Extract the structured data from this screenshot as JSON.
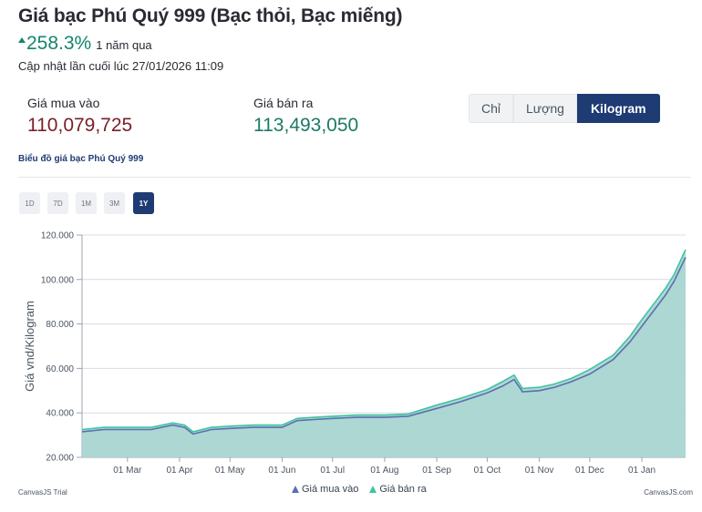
{
  "header": {
    "title": "Giá bạc Phú Quý 999 (Bạc thỏi, Bạc miếng)",
    "change_pct": "258.3%",
    "change_period": "1 năm qua",
    "updated": "Cập nhật lần cuối lúc 27/01/2026 11:09"
  },
  "prices": {
    "buy_label": "Giá mua vào",
    "buy_value": "110,079,725",
    "sell_label": "Giá bán ra",
    "sell_value": "113,493,050"
  },
  "units": {
    "options": [
      "Chỉ",
      "Lượng",
      "Kilogram"
    ],
    "selected": "Kilogram"
  },
  "chart_section_title": "Biểu đồ giá bạc Phú Quý 999",
  "ranges": {
    "options": [
      "1D",
      "7D",
      "1M",
      "3M",
      "1Y"
    ],
    "selected": "1Y"
  },
  "colors": {
    "buy": "#5a6fb0",
    "sell": "#3fc3a0",
    "area": "#a9d5d0",
    "accent": "#1e3b73",
    "up": "#14866d"
  },
  "chart_data": {
    "type": "area",
    "ylabel": "Giá vnd/Kilogram",
    "y_tick_labels": [
      "20.000",
      "40.000",
      "60.000",
      "80.000",
      "100.000",
      "120.000"
    ],
    "y_ticks": [
      20000,
      40000,
      60000,
      80000,
      100000,
      120000
    ],
    "ylim": [
      20000,
      120000
    ],
    "x_tick_labels": [
      "01 Mar",
      "01 Apr",
      "01 May",
      "01 Jun",
      "01 Jul",
      "01 Aug",
      "01 Sep",
      "01 Oct",
      "01 Nov",
      "01 Dec",
      "01 Jan"
    ],
    "x_ticks": [
      "2025-03-01",
      "2025-04-01",
      "2025-05-01",
      "2025-06-01",
      "2025-07-01",
      "2025-08-01",
      "2025-09-01",
      "2025-10-01",
      "2025-11-01",
      "2025-12-01",
      "2026-01-01"
    ],
    "xlim": [
      "2025-02-02",
      "2026-01-27"
    ],
    "grid": "horizontal",
    "legend": "bottom-center",
    "series": [
      {
        "name": "Giá mua vào",
        "x": [
          "2025-02-02",
          "2025-02-15",
          "2025-03-01",
          "2025-03-15",
          "2025-03-28",
          "2025-04-04",
          "2025-04-09",
          "2025-04-20",
          "2025-05-01",
          "2025-05-15",
          "2025-06-01",
          "2025-06-10",
          "2025-06-20",
          "2025-07-01",
          "2025-07-15",
          "2025-08-01",
          "2025-08-15",
          "2025-09-01",
          "2025-09-15",
          "2025-10-01",
          "2025-10-10",
          "2025-10-17",
          "2025-10-22",
          "2025-11-01",
          "2025-11-10",
          "2025-11-20",
          "2025-12-01",
          "2025-12-15",
          "2025-12-25",
          "2026-01-01",
          "2026-01-10",
          "2026-01-15",
          "2026-01-20",
          "2026-01-27"
        ],
        "values": [
          31500,
          32500,
          32500,
          32500,
          34500,
          33500,
          30500,
          32500,
          33000,
          33500,
          33500,
          36500,
          37000,
          37500,
          38000,
          38000,
          38500,
          42000,
          45000,
          49000,
          52000,
          55000,
          49500,
          50000,
          51500,
          54000,
          57500,
          64000,
          72000,
          79000,
          88000,
          93000,
          99000,
          110000
        ]
      },
      {
        "name": "Giá bán ra",
        "x": [
          "2025-02-02",
          "2025-02-15",
          "2025-03-01",
          "2025-03-15",
          "2025-03-28",
          "2025-04-04",
          "2025-04-09",
          "2025-04-20",
          "2025-05-01",
          "2025-05-15",
          "2025-06-01",
          "2025-06-10",
          "2025-06-20",
          "2025-07-01",
          "2025-07-15",
          "2025-08-01",
          "2025-08-15",
          "2025-09-01",
          "2025-09-15",
          "2025-10-01",
          "2025-10-10",
          "2025-10-17",
          "2025-10-22",
          "2025-11-01",
          "2025-11-10",
          "2025-11-20",
          "2025-12-01",
          "2025-12-15",
          "2025-12-25",
          "2026-01-01",
          "2026-01-10",
          "2026-01-15",
          "2026-01-20",
          "2026-01-27"
        ],
        "values": [
          32500,
          33500,
          33500,
          33500,
          35500,
          34500,
          31500,
          33500,
          34000,
          34500,
          34500,
          37500,
          38000,
          38500,
          39000,
          39000,
          39500,
          43500,
          46500,
          50500,
          54000,
          57000,
          51000,
          51500,
          53000,
          55500,
          59500,
          66000,
          74500,
          82000,
          91000,
          96000,
          102000,
          113500
        ]
      }
    ]
  },
  "credits": {
    "left": "CanvasJS Trial",
    "right": "CanvasJS.com"
  }
}
